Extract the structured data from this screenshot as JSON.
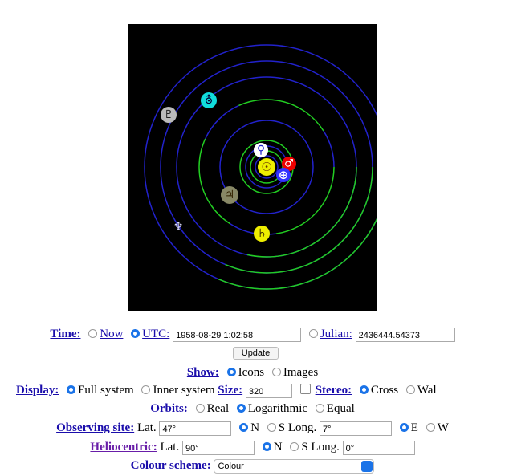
{
  "orrery": {
    "symbols": {
      "pluto": "♇",
      "uranus": "⛢",
      "venus": "♀",
      "mars": "♂",
      "earth": "⊕",
      "sun": "☉",
      "jupiter": "♃",
      "saturn": "♄",
      "neptune": "♆"
    }
  },
  "controls": {
    "time": {
      "label": "Time:",
      "now": "Now",
      "utc": "UTC:",
      "utc_value": "1958-08-29 1:02:58",
      "julian": "Julian:",
      "julian_value": "2436444.54373",
      "update": "Update"
    },
    "show": {
      "label": "Show:",
      "icons": "Icons",
      "images": "Images"
    },
    "display": {
      "label": "Display:",
      "full": "Full system",
      "inner": "Inner system",
      "size": "Size:",
      "size_value": "320",
      "stereo": "Stereo:",
      "cross": "Cross",
      "wall": "Wal"
    },
    "orbits": {
      "label": "Orbits:",
      "real": "Real",
      "log": "Logarithmic",
      "equal": "Equal"
    },
    "site": {
      "label": "Observing site:",
      "lat": "Lat.",
      "lat_value": "47°",
      "n": "N",
      "s": "S Long.",
      "long_value": "7°",
      "e": "E",
      "w": "W"
    },
    "helio": {
      "label": "Heliocentric:",
      "lat": "Lat.",
      "lat_value": "90°",
      "n": "N",
      "s": "S Long.",
      "long_value": "0°"
    },
    "colour": {
      "label": "Colour scheme:",
      "value": "Colour"
    }
  }
}
